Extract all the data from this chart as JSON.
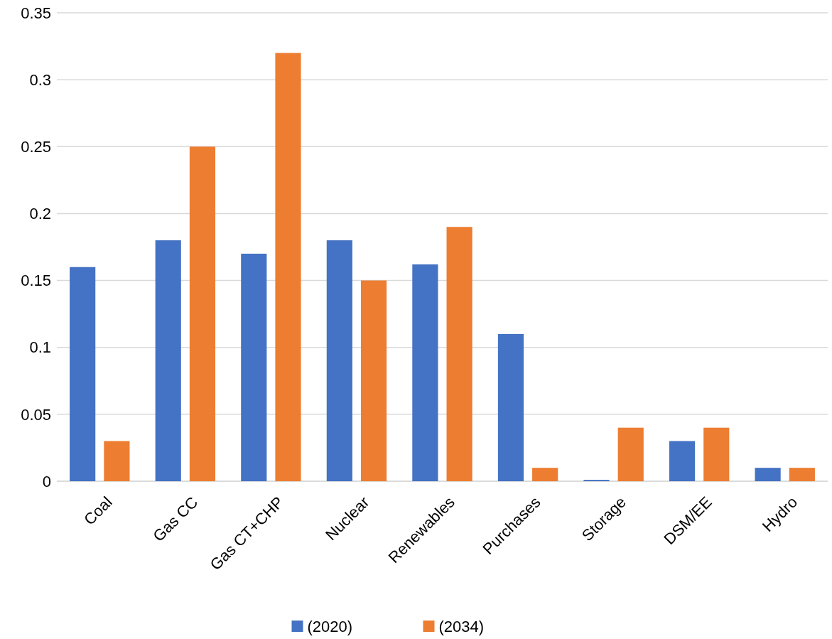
{
  "chart_data": {
    "type": "bar",
    "categories": [
      "Coal",
      "Gas CC",
      "Gas CT+CHP",
      "Nuclear",
      "Renewables",
      "Purchases",
      "Storage",
      "DSM/EE",
      "Hydro"
    ],
    "series": [
      {
        "name": "(2020)",
        "color": "#4472c4",
        "values": [
          0.16,
          0.18,
          0.17,
          0.18,
          0.162,
          0.11,
          0.001,
          0.03,
          0.01
        ]
      },
      {
        "name": "(2034)",
        "color": "#ed7d31",
        "values": [
          0.03,
          0.25,
          0.32,
          0.15,
          0.19,
          0.01,
          0.04,
          0.04,
          0.01
        ]
      }
    ],
    "ylim": [
      0,
      0.35
    ],
    "yticks": [
      0,
      0.05,
      0.1,
      0.15,
      0.2,
      0.25,
      0.3,
      0.35
    ],
    "grid": "y",
    "legend": "bottom"
  }
}
